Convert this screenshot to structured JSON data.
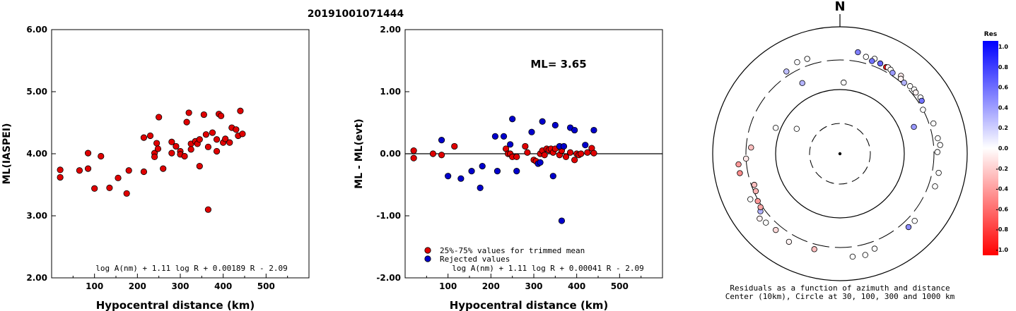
{
  "figure_title": "20191001071444",
  "chart_data": [
    {
      "type": "scatter",
      "xlabel": "Hypocentral distance (km)",
      "ylabel": "ML(IASPEI)",
      "xlim": [
        0,
        600
      ],
      "ylim": [
        2.0,
        6.0
      ],
      "x_ticks": [
        "100",
        "200",
        "300",
        "400",
        "500"
      ],
      "y_ticks": [
        "2.00",
        "3.00",
        "4.00",
        "5.00",
        "6.00"
      ],
      "formula": "log A(nm) + 1.11 log R + 0.00189 R - 2.09",
      "series": [
        {
          "color": "#e00000",
          "points": [
            [
              20,
              3.74
            ],
            [
              20,
              3.62
            ],
            [
              65,
              3.73
            ],
            [
              85,
              4.01
            ],
            [
              85,
              3.76
            ],
            [
              100,
              3.44
            ],
            [
              115,
              3.96
            ],
            [
              135,
              3.45
            ],
            [
              155,
              3.61
            ],
            [
              175,
              3.36
            ],
            [
              180,
              3.73
            ],
            [
              215,
              3.71
            ],
            [
              215,
              4.26
            ],
            [
              230,
              4.29
            ],
            [
              240,
              4.01
            ],
            [
              240,
              3.95
            ],
            [
              245,
              4.17
            ],
            [
              250,
              4.59
            ],
            [
              248,
              4.08
            ],
            [
              260,
              3.76
            ],
            [
              280,
              4.19
            ],
            [
              280,
              4.01
            ],
            [
              290,
              4.12
            ],
            [
              300,
              4.04
            ],
            [
              300,
              3.99
            ],
            [
              310,
              3.96
            ],
            [
              315,
              4.51
            ],
            [
              320,
              4.66
            ],
            [
              325,
              4.16
            ],
            [
              325,
              4.07
            ],
            [
              335,
              4.2
            ],
            [
              340,
              4.16
            ],
            [
              345,
              3.8
            ],
            [
              345,
              4.23
            ],
            [
              355,
              4.63
            ],
            [
              360,
              4.31
            ],
            [
              365,
              4.11
            ],
            [
              365,
              3.1
            ],
            [
              375,
              4.34
            ],
            [
              385,
              4.23
            ],
            [
              385,
              4.04
            ],
            [
              390,
              4.64
            ],
            [
              395,
              4.61
            ],
            [
              400,
              4.18
            ],
            [
              405,
              4.24
            ],
            [
              415,
              4.18
            ],
            [
              420,
              4.42
            ],
            [
              430,
              4.39
            ],
            [
              435,
              4.29
            ],
            [
              440,
              4.69
            ],
            [
              445,
              4.32
            ]
          ]
        }
      ]
    },
    {
      "type": "scatter",
      "xlabel": "Hypocentral distance (km)",
      "ylabel": "ML - ML(evt)",
      "xlim": [
        0,
        600
      ],
      "ylim": [
        -2.0,
        2.0
      ],
      "x_ticks": [
        "100",
        "200",
        "300",
        "400",
        "500"
      ],
      "y_ticks": [
        "-2.00",
        "-1.00",
        "0.00",
        "1.00",
        "2.00"
      ],
      "annotation": "ML= 3.65",
      "reference_line": 0.0,
      "formula": "log A(nm) + 1.11 log R + 0.00041 R - 2.09",
      "legend": [
        {
          "label": "25%-75% values for trimmed mean",
          "color": "#e00000"
        },
        {
          "label": "Rejected values",
          "color": "#0000cc"
        }
      ],
      "series": [
        {
          "name": "25%-75% values for trimmed mean",
          "color": "#e00000",
          "points": [
            [
              20,
              0.05
            ],
            [
              20,
              -0.07
            ],
            [
              65,
              0.0
            ],
            [
              85,
              -0.02
            ],
            [
              115,
              0.12
            ],
            [
              235,
              0.08
            ],
            [
              240,
              0.0
            ],
            [
              245,
              0.0
            ],
            [
              250,
              -0.05
            ],
            [
              260,
              -0.05
            ],
            [
              280,
              0.12
            ],
            [
              285,
              0.02
            ],
            [
              300,
              -0.1
            ],
            [
              305,
              -0.12
            ],
            [
              315,
              0.0
            ],
            [
              320,
              0.05
            ],
            [
              325,
              -0.02
            ],
            [
              330,
              0.08
            ],
            [
              335,
              0.06
            ],
            [
              340,
              0.08
            ],
            [
              345,
              0.02
            ],
            [
              350,
              0.08
            ],
            [
              360,
              -0.02
            ],
            [
              365,
              0.05
            ],
            [
              375,
              -0.05
            ],
            [
              385,
              0.02
            ],
            [
              395,
              -0.1
            ],
            [
              400,
              0.0
            ],
            [
              405,
              -0.02
            ],
            [
              410,
              0.0
            ],
            [
              425,
              0.02
            ],
            [
              435,
              0.09
            ],
            [
              440,
              0.01
            ]
          ]
        },
        {
          "name": "Rejected values",
          "color": "#0000cc",
          "points": [
            [
              85,
              0.22
            ],
            [
              100,
              -0.36
            ],
            [
              130,
              -0.4
            ],
            [
              155,
              -0.28
            ],
            [
              175,
              -0.55
            ],
            [
              180,
              -0.2
            ],
            [
              210,
              0.28
            ],
            [
              215,
              -0.28
            ],
            [
              230,
              0.28
            ],
            [
              245,
              0.15
            ],
            [
              250,
              0.56
            ],
            [
              260,
              -0.28
            ],
            [
              295,
              0.35
            ],
            [
              310,
              -0.16
            ],
            [
              315,
              -0.14
            ],
            [
              320,
              0.52
            ],
            [
              345,
              -0.36
            ],
            [
              350,
              0.46
            ],
            [
              360,
              0.12
            ],
            [
              365,
              -1.08
            ],
            [
              370,
              0.12
            ],
            [
              385,
              0.42
            ],
            [
              395,
              0.38
            ],
            [
              420,
              0.14
            ],
            [
              440,
              0.38
            ]
          ]
        }
      ]
    },
    {
      "type": "polar-scatter",
      "north_label": "N",
      "caption_line1": "Residuals as a function of azimuth and distance",
      "caption_line2": "Center (10km), Circle at 30, 100, 300 and 1000 km",
      "rings_km": [
        30,
        100,
        300,
        1000
      ],
      "colorbar": {
        "title": "Res",
        "ticks": [
          "1.0",
          "0.8",
          "0.6",
          "0.4",
          "0.2",
          "0.0",
          "-0.2",
          "-0.4",
          "-0.6",
          "-0.8",
          "-1.0"
        ],
        "max_color": "#0000ff",
        "zero_color": "#ffffff",
        "min_color": "#ff0000"
      },
      "stations": [
        {
          "azimuth_deg": 341,
          "distance_km": 380,
          "res": 0.0
        },
        {
          "azimuth_deg": 335,
          "distance_km": 390,
          "res": 0.02
        },
        {
          "azimuth_deg": 327,
          "distance_km": 350,
          "res": 0.25
        },
        {
          "azimuth_deg": 332,
          "distance_km": 180,
          "res": 0.3
        },
        {
          "azimuth_deg": 3,
          "distance_km": 130,
          "res": 0.0
        },
        {
          "azimuth_deg": 10,
          "distance_km": 420,
          "res": 0.5
        },
        {
          "azimuth_deg": 15,
          "distance_km": 380,
          "res": 0.0
        },
        {
          "azimuth_deg": 20,
          "distance_km": 390,
          "res": 0.0
        },
        {
          "azimuth_deg": 19,
          "distance_km": 350,
          "res": 0.55
        },
        {
          "azimuth_deg": 24,
          "distance_km": 360,
          "res": 0.6
        },
        {
          "azimuth_deg": 28,
          "distance_km": 350,
          "res": -0.95
        },
        {
          "azimuth_deg": 29,
          "distance_km": 360,
          "res": -0.05
        },
        {
          "azimuth_deg": 31,
          "distance_km": 350,
          "res": 0.0
        },
        {
          "azimuth_deg": 33,
          "distance_km": 330,
          "res": 0.4
        },
        {
          "azimuth_deg": 38,
          "distance_km": 360,
          "res": -0.08
        },
        {
          "azimuth_deg": 39,
          "distance_km": 330,
          "res": -0.05
        },
        {
          "azimuth_deg": 42,
          "distance_km": 320,
          "res": 0.3
        },
        {
          "azimuth_deg": 46,
          "distance_km": 340,
          "res": 0.0
        },
        {
          "azimuth_deg": 49,
          "distance_km": 350,
          "res": 0.0
        },
        {
          "azimuth_deg": 51,
          "distance_km": 340,
          "res": -0.05
        },
        {
          "azimuth_deg": 55,
          "distance_km": 350,
          "res": 0.0
        },
        {
          "azimuth_deg": 57,
          "distance_km": 340,
          "res": 0.55
        },
        {
          "azimuth_deg": 62,
          "distance_km": 300,
          "res": 0.0
        },
        {
          "azimuth_deg": 70,
          "distance_km": 170,
          "res": 0.4
        },
        {
          "azimuth_deg": 72,
          "distance_km": 350,
          "res": 0.0
        },
        {
          "azimuth_deg": 81,
          "distance_km": 360,
          "res": 0.0
        },
        {
          "azimuth_deg": 85,
          "distance_km": 380,
          "res": 0.0
        },
        {
          "azimuth_deg": 89,
          "distance_km": 340,
          "res": 0.0
        },
        {
          "azimuth_deg": 101,
          "distance_km": 380,
          "res": 0.0
        },
        {
          "azimuth_deg": 109,
          "distance_km": 380,
          "res": 0.0
        },
        {
          "azimuth_deg": 132,
          "distance_km": 380,
          "res": 0.0
        },
        {
          "azimuth_deg": 137,
          "distance_km": 380,
          "res": 0.45
        },
        {
          "azimuth_deg": 160,
          "distance_km": 390,
          "res": 0.0
        },
        {
          "azimuth_deg": 166,
          "distance_km": 440,
          "res": 0.0
        },
        {
          "azimuth_deg": 173,
          "distance_km": 430,
          "res": 0.0
        },
        {
          "azimuth_deg": 195,
          "distance_km": 360,
          "res": -0.25
        },
        {
          "azimuth_deg": 210,
          "distance_km": 400,
          "res": -0.05
        },
        {
          "azimuth_deg": 220,
          "distance_km": 370,
          "res": -0.15
        },
        {
          "azimuth_deg": 227,
          "distance_km": 390,
          "res": 0.0
        },
        {
          "azimuth_deg": 231,
          "distance_km": 420,
          "res": -0.05
        },
        {
          "azimuth_deg": 234,
          "distance_km": 350,
          "res": 0.3
        },
        {
          "azimuth_deg": 236,
          "distance_km": 320,
          "res": -0.35
        },
        {
          "azimuth_deg": 240,
          "distance_km": 310,
          "res": -0.4
        },
        {
          "azimuth_deg": 243,
          "distance_km": 380,
          "res": 0.0
        },
        {
          "azimuth_deg": 246,
          "distance_km": 280,
          "res": -0.3
        },
        {
          "azimuth_deg": 250,
          "distance_km": 270,
          "res": -0.25
        },
        {
          "azimuth_deg": 259,
          "distance_km": 400,
          "res": -0.45
        },
        {
          "azimuth_deg": 264,
          "distance_km": 400,
          "res": -0.4
        },
        {
          "azimuth_deg": 267,
          "distance_km": 300,
          "res": -0.1
        },
        {
          "azimuth_deg": 274,
          "distance_km": 250,
          "res": -0.25
        },
        {
          "azimuth_deg": 292,
          "distance_km": 120,
          "res": 0.0
        },
        {
          "azimuth_deg": 300,
          "distance_km": 60,
          "res": 0.0
        }
      ]
    }
  ]
}
